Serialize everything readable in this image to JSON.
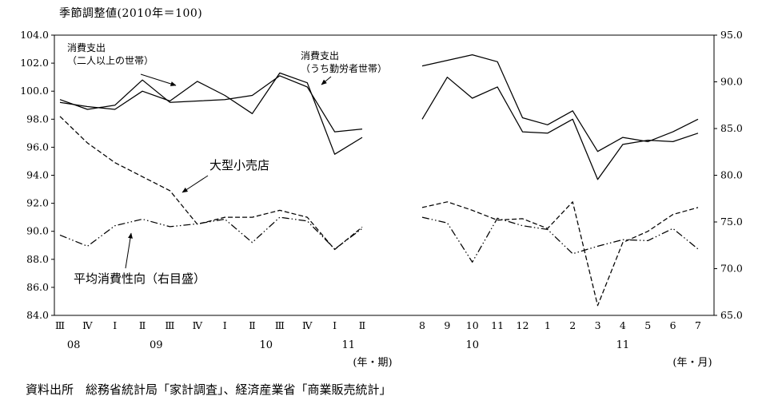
{
  "title": "季節調整値(2010年＝100)",
  "source": "資料出所　総務省統計局「家計調査」、経済産業省「商業販売統計」",
  "annotations": {
    "futari": {
      "line1": "消費支出",
      "line2": "（二人以上の世帯）"
    },
    "kinro": {
      "line1": "消費支出",
      "line2": "（うち勤労者世帯）"
    },
    "large_retail": "大型小売店",
    "propensity": "平均消費性向（右目盛）"
  },
  "chart_data": {
    "type": "line",
    "title": "季節調整値(2010年＝100)",
    "grid": false,
    "legend": "in-plot annotations with arrows",
    "left_axis": {
      "min": 84.0,
      "max": 104.0,
      "step": 2.0,
      "ticks": [
        "104.0",
        "102.0",
        "100.0",
        "98.0",
        "96.0",
        "94.0",
        "92.0",
        "90.0",
        "88.0",
        "86.0",
        "84.0"
      ]
    },
    "right_axis": {
      "min": 65.0,
      "max": 95.0,
      "step": 5.0,
      "ticks": [
        "95.0",
        "90.0",
        "85.0",
        "80.0",
        "75.0",
        "70.0",
        "65.0"
      ]
    },
    "series_meta": [
      {
        "key": "futari",
        "name": "消費支出（二人以上の世帯）",
        "axis": "left",
        "style": "solid"
      },
      {
        "key": "kinro",
        "name": "消費支出（うち勤労者世帯）",
        "axis": "left",
        "style": "solid"
      },
      {
        "key": "large_retail",
        "name": "大型小売店",
        "axis": "left",
        "style": "dashed"
      },
      {
        "key": "propensity",
        "name": "平均消費性向（右目盛）",
        "axis": "right",
        "style": "dashdotdot"
      }
    ],
    "line_color": "#000000",
    "panels": [
      {
        "name": "quarterly",
        "axis_caption": "(年・期)",
        "x_labels": [
          "Ⅲ",
          "Ⅳ",
          "Ⅰ",
          "Ⅱ",
          "Ⅲ",
          "Ⅳ",
          "Ⅰ",
          "Ⅱ",
          "Ⅲ",
          "Ⅳ",
          "Ⅰ",
          "Ⅱ"
        ],
        "year_groups": [
          {
            "label": "08",
            "from": 0,
            "to": 1
          },
          {
            "label": "09",
            "from": 2,
            "to": 5
          },
          {
            "label": "10",
            "from": 6,
            "to": 9
          },
          {
            "label": "11",
            "from": 10,
            "to": 11
          }
        ],
        "series": {
          "futari": [
            99.4,
            98.7,
            99.0,
            100.8,
            99.2,
            99.3,
            99.4,
            99.7,
            101.1,
            100.3,
            97.1,
            97.3
          ],
          "kinro": [
            99.2,
            98.9,
            98.7,
            100.0,
            99.3,
            100.7,
            99.7,
            98.4,
            101.3,
            100.6,
            95.5,
            96.7
          ],
          "large_retail": [
            98.2,
            96.3,
            94.9,
            93.9,
            92.9,
            90.5,
            91.0,
            91.0,
            91.5,
            91.0,
            88.7,
            90.3
          ],
          "propensity": [
            73.6,
            72.4,
            74.6,
            75.3,
            74.5,
            74.8,
            75.3,
            72.8,
            75.5,
            75.1,
            72.1,
            74.3
          ]
        }
      },
      {
        "name": "monthly",
        "axis_caption": "(年・月)",
        "x_labels": [
          "8",
          "9",
          "10",
          "11",
          "12",
          "1",
          "2",
          "3",
          "4",
          "5",
          "6",
          "7"
        ],
        "year_groups": [
          {
            "label": "10",
            "from": 0,
            "to": 4
          },
          {
            "label": "11",
            "from": 5,
            "to": 11
          }
        ],
        "series": {
          "futari": [
            101.8,
            102.2,
            102.6,
            102.1,
            98.1,
            97.6,
            98.6,
            95.7,
            96.7,
            96.4,
            97.1,
            98.0
          ],
          "kinro": [
            98.0,
            101.0,
            99.5,
            100.3,
            97.1,
            97.0,
            98.0,
            93.7,
            96.2,
            96.5,
            96.4,
            97.0
          ],
          "large_retail": [
            91.7,
            92.1,
            91.5,
            90.8,
            90.9,
            90.2,
            92.1,
            84.7,
            89.2,
            90.0,
            91.2,
            91.7
          ],
          "propensity": [
            75.5,
            74.9,
            70.7,
            75.4,
            74.6,
            74.2,
            71.6,
            72.4,
            73.1,
            73.0,
            74.3,
            72.1
          ]
        }
      }
    ]
  }
}
